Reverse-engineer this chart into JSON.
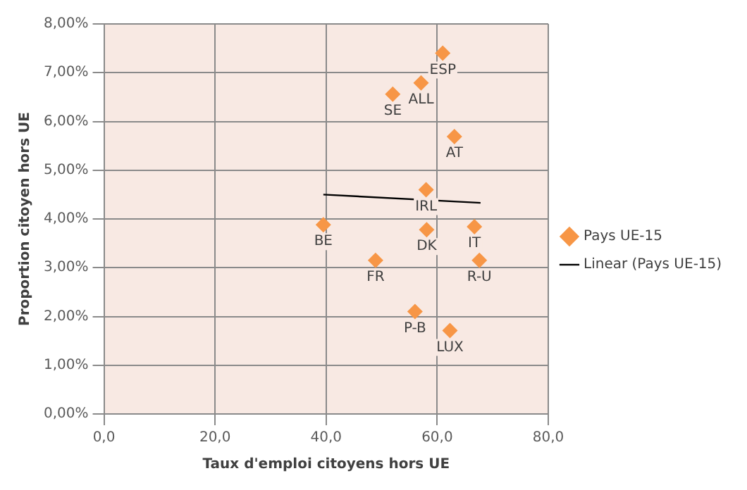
{
  "chart_data": {
    "type": "scatter",
    "xlabel": "Taux d'emploi citoyens hors UE",
    "ylabel": "Proportion citoyen hors UE",
    "series": [
      {
        "name": "Pays UE-15",
        "color": "#f79646",
        "marker": "diamond",
        "x": [
          61.0,
          57.1,
          52.0,
          63.1,
          58.0,
          39.5,
          58.1,
          66.7,
          48.9,
          67.6,
          56.0,
          62.3
        ],
        "values": [
          7.4,
          6.79,
          6.56,
          5.69,
          4.6,
          3.88,
          3.78,
          3.84,
          3.15,
          3.15,
          2.1,
          1.71
        ]
      },
      {
        "name": "Linear (Pays UE-15)",
        "type": "line",
        "color": "#000000",
        "marker": "none",
        "x": [
          39.5,
          67.8
        ],
        "values": [
          4.5,
          4.33
        ]
      }
    ],
    "annotations": [
      {
        "text": "ESP",
        "x": 61.0,
        "y": 7.4
      },
      {
        "text": "ALL",
        "x": 57.1,
        "y": 6.79
      },
      {
        "text": "SE",
        "x": 52.0,
        "y": 6.56
      },
      {
        "text": "AT",
        "x": 63.1,
        "y": 5.69
      },
      {
        "text": "IRL",
        "x": 58.0,
        "y": 4.6
      },
      {
        "text": "BE",
        "x": 39.5,
        "y": 3.88
      },
      {
        "text": "DK",
        "x": 58.1,
        "y": 3.78
      },
      {
        "text": "IT",
        "x": 66.7,
        "y": 3.84
      },
      {
        "text": "FR",
        "x": 48.9,
        "y": 3.15
      },
      {
        "text": "R-U",
        "x": 67.6,
        "y": 3.15
      },
      {
        "text": "P-B",
        "x": 56.0,
        "y": 2.1
      },
      {
        "text": "LUX",
        "x": 62.3,
        "y": 1.71
      }
    ],
    "xlim": [
      0,
      80
    ],
    "xticks": [
      {
        "value": 0,
        "label": "0,0"
      },
      {
        "value": 20,
        "label": "20,0"
      },
      {
        "value": 40,
        "label": "40,0"
      },
      {
        "value": 60,
        "label": "60,0"
      },
      {
        "value": 80,
        "label": "80,0"
      }
    ],
    "ylim": [
      0,
      8
    ],
    "yticks": [
      {
        "value": 0,
        "label": "0,00%"
      },
      {
        "value": 1,
        "label": "1,00%"
      },
      {
        "value": 2,
        "label": "2,00%"
      },
      {
        "value": 3,
        "label": "3,00%"
      },
      {
        "value": 4,
        "label": "4,00%"
      },
      {
        "value": 5,
        "label": "5,00%"
      },
      {
        "value": 6,
        "label": "6,00%"
      },
      {
        "value": 7,
        "label": "7,00%"
      },
      {
        "value": 8,
        "label": "8,00%"
      }
    ],
    "grid": true,
    "legend": "right"
  }
}
